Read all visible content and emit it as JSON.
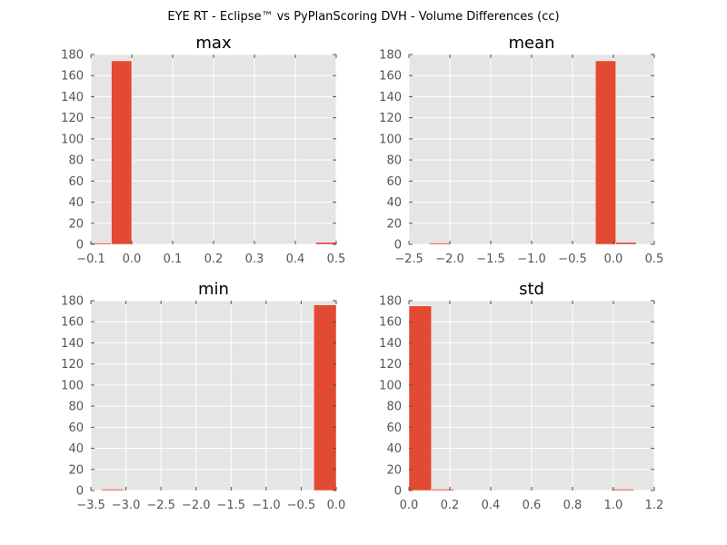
{
  "figure": {
    "title": "EYE RT - Eclipse™ vs PyPlanScoring DVH - Volume Differences (cc)"
  },
  "colors": {
    "bar": "#E24A33",
    "plot_background": "#E5E5E5",
    "grid": "#FFFFFF"
  },
  "chart_data": [
    {
      "type": "bar",
      "title": "max",
      "xlabel": "",
      "ylabel": "",
      "grid": true,
      "xlim": [
        -0.1,
        0.5
      ],
      "ylim": [
        0,
        180
      ],
      "xticks": [
        -0.1,
        0.0,
        0.1,
        0.2,
        0.3,
        0.4,
        0.5
      ],
      "xtick_labels": [
        "−0.1",
        "0.0",
        "0.1",
        "0.2",
        "0.3",
        "0.4",
        "0.5"
      ],
      "yticks": [
        0,
        20,
        40,
        60,
        80,
        100,
        120,
        140,
        160,
        180
      ],
      "ytick_labels": [
        "0",
        "20",
        "40",
        "60",
        "80",
        "100",
        "120",
        "140",
        "160",
        "180"
      ],
      "bins": [
        {
          "x0": -0.1,
          "x1": -0.05,
          "count": 1
        },
        {
          "x0": -0.05,
          "x1": 0.0,
          "count": 174
        },
        {
          "x0": 0.0,
          "x1": 0.05,
          "count": 0
        },
        {
          "x0": 0.05,
          "x1": 0.1,
          "count": 0
        },
        {
          "x0": 0.1,
          "x1": 0.15,
          "count": 0
        },
        {
          "x0": 0.15,
          "x1": 0.2,
          "count": 0
        },
        {
          "x0": 0.2,
          "x1": 0.25,
          "count": 0
        },
        {
          "x0": 0.25,
          "x1": 0.3,
          "count": 0
        },
        {
          "x0": 0.3,
          "x1": 0.35,
          "count": 0
        },
        {
          "x0": 0.35,
          "x1": 0.4,
          "count": 0
        },
        {
          "x0": 0.4,
          "x1": 0.45,
          "count": 0
        },
        {
          "x0": 0.45,
          "x1": 0.5,
          "count": 2
        }
      ]
    },
    {
      "type": "bar",
      "title": "mean",
      "xlabel": "",
      "ylabel": "",
      "grid": true,
      "xlim": [
        -2.5,
        0.5
      ],
      "ylim": [
        0,
        180
      ],
      "xticks": [
        -2.5,
        -2.0,
        -1.5,
        -1.0,
        -0.5,
        0.0,
        0.5
      ],
      "xtick_labels": [
        "−2.5",
        "−2.0",
        "−1.5",
        "−1.0",
        "−0.5",
        "0.0",
        "0.5"
      ],
      "yticks": [
        0,
        20,
        40,
        60,
        80,
        100,
        120,
        140,
        160,
        180
      ],
      "ytick_labels": [
        "0",
        "20",
        "40",
        "60",
        "80",
        "100",
        "120",
        "140",
        "160",
        "180"
      ],
      "bins": [
        {
          "x0": -2.5,
          "x1": -2.25,
          "count": 0
        },
        {
          "x0": -2.25,
          "x1": -2.0,
          "count": 1
        },
        {
          "x0": -2.0,
          "x1": -1.75,
          "count": 0
        },
        {
          "x0": -1.75,
          "x1": -1.5,
          "count": 0
        },
        {
          "x0": -1.5,
          "x1": -1.25,
          "count": 0
        },
        {
          "x0": -1.25,
          "x1": -1.0,
          "count": 0
        },
        {
          "x0": -1.0,
          "x1": -0.75,
          "count": 0
        },
        {
          "x0": -0.75,
          "x1": -0.5,
          "count": 0
        },
        {
          "x0": -0.5,
          "x1": -0.25,
          "count": 0
        },
        {
          "x0": -0.22,
          "x1": 0.03,
          "count": 174
        },
        {
          "x0": 0.03,
          "x1": 0.28,
          "count": 2
        }
      ]
    },
    {
      "type": "bar",
      "title": "min",
      "xlabel": "",
      "ylabel": "",
      "grid": true,
      "xlim": [
        -3.5,
        0.0
      ],
      "ylim": [
        0,
        180
      ],
      "xticks": [
        -3.5,
        -3.0,
        -2.5,
        -2.0,
        -1.5,
        -1.0,
        -0.5,
        0.0
      ],
      "xtick_labels": [
        "−3.5",
        "−3.0",
        "−2.5",
        "−2.0",
        "−1.5",
        "−1.0",
        "−0.5",
        "0.0"
      ],
      "yticks": [
        0,
        20,
        40,
        60,
        80,
        100,
        120,
        140,
        160,
        180
      ],
      "ytick_labels": [
        "0",
        "20",
        "40",
        "60",
        "80",
        "100",
        "120",
        "140",
        "160",
        "180"
      ],
      "bins": [
        {
          "x0": -3.35,
          "x1": -3.03,
          "count": 1
        },
        {
          "x0": -3.03,
          "x1": -2.71,
          "count": 0
        },
        {
          "x0": -2.71,
          "x1": -2.39,
          "count": 0
        },
        {
          "x0": -2.39,
          "x1": -2.07,
          "count": 0
        },
        {
          "x0": -2.07,
          "x1": -1.75,
          "count": 0
        },
        {
          "x0": -1.75,
          "x1": -1.43,
          "count": 0
        },
        {
          "x0": -1.43,
          "x1": -1.11,
          "count": 0
        },
        {
          "x0": -1.11,
          "x1": -0.79,
          "count": 0
        },
        {
          "x0": -0.79,
          "x1": -0.47,
          "count": 0
        },
        {
          "x0": -0.32,
          "x1": 0.0,
          "count": 176
        }
      ]
    },
    {
      "type": "bar",
      "title": "std",
      "xlabel": "",
      "ylabel": "",
      "grid": true,
      "xlim": [
        0.0,
        1.2
      ],
      "ylim": [
        0,
        180
      ],
      "xticks": [
        0.0,
        0.2,
        0.4,
        0.6,
        0.8,
        1.0,
        1.2
      ],
      "xtick_labels": [
        "0.0",
        "0.2",
        "0.4",
        "0.6",
        "0.8",
        "1.0",
        "1.2"
      ],
      "yticks": [
        0,
        20,
        40,
        60,
        80,
        100,
        120,
        140,
        160,
        180
      ],
      "ytick_labels": [
        "0",
        "20",
        "40",
        "60",
        "80",
        "100",
        "120",
        "140",
        "160",
        "180"
      ],
      "bins": [
        {
          "x0": 0.0,
          "x1": 0.11,
          "count": 175
        },
        {
          "x0": 0.11,
          "x1": 0.22,
          "count": 1
        },
        {
          "x0": 0.22,
          "x1": 0.33,
          "count": 0
        },
        {
          "x0": 0.33,
          "x1": 0.44,
          "count": 0
        },
        {
          "x0": 0.44,
          "x1": 0.55,
          "count": 0
        },
        {
          "x0": 0.55,
          "x1": 0.66,
          "count": 0
        },
        {
          "x0": 0.66,
          "x1": 0.77,
          "count": 0
        },
        {
          "x0": 0.77,
          "x1": 0.88,
          "count": 0
        },
        {
          "x0": 0.88,
          "x1": 0.99,
          "count": 0
        },
        {
          "x0": 0.99,
          "x1": 1.1,
          "count": 1
        }
      ]
    }
  ]
}
